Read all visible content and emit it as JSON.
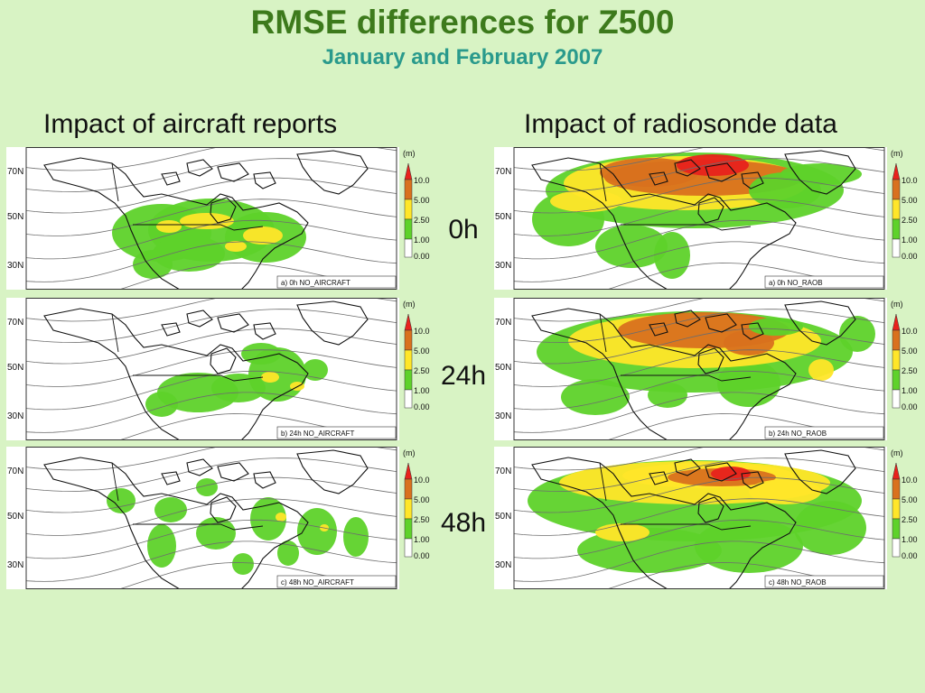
{
  "title": "RMSE differences for Z500",
  "subtitle": "January and February 2007",
  "columns": [
    {
      "heading": "Impact of aircraft reports"
    },
    {
      "heading": "Impact of radiosonde data"
    }
  ],
  "lead_times": [
    "0h",
    "24h",
    "48h"
  ],
  "latitude_labels": [
    "70N",
    "50N",
    "30N"
  ],
  "legend": {
    "unit": "(m)",
    "levels": [
      "10.0",
      "5.00",
      "2.50",
      "1.00",
      "0.00"
    ],
    "colors": [
      "#e8221c",
      "#d9711e",
      "#ffe629",
      "#5ed22a",
      "#ffffff"
    ]
  },
  "panels": [
    {
      "caption": "a) 0h NO_AIRCRAFT",
      "column": "aircraft",
      "lead": "0h"
    },
    {
      "caption": "b) 24h NO_AIRCRAFT",
      "column": "aircraft",
      "lead": "24h"
    },
    {
      "caption": "c) 48h NO_AIRCRAFT",
      "column": "aircraft",
      "lead": "48h"
    },
    {
      "caption": "a) 0h NO_RAOB",
      "column": "radiosonde",
      "lead": "0h"
    },
    {
      "caption": "b) 24h NO_RAOB",
      "column": "radiosonde",
      "lead": "24h"
    },
    {
      "caption": "c) 48h NO_RAOB",
      "column": "radiosonde",
      "lead": "48h"
    }
  ]
}
